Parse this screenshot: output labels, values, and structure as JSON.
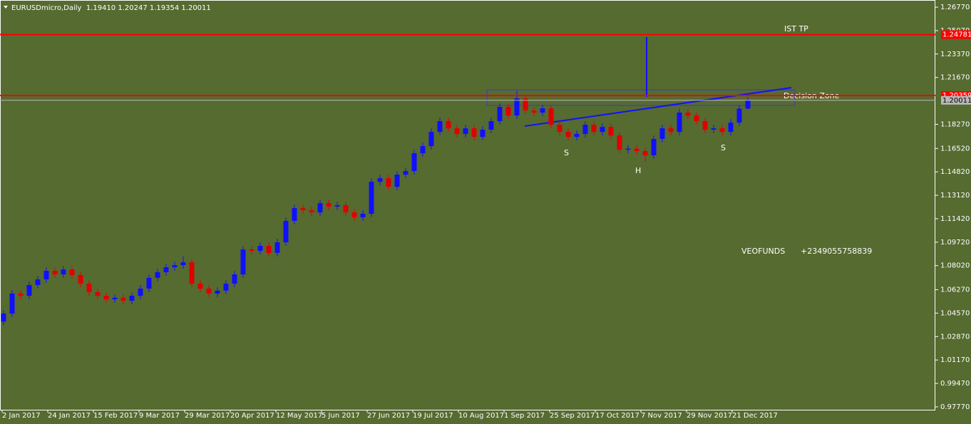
{
  "chart_data": {
    "type": "candlestick",
    "title": "EURUSDmicro,Daily  1.19410 1.20247 1.19354 1.20011",
    "up_color": "#1010ff",
    "down_color": "#e00000",
    "open": [
      1.0395,
      1.0454,
      1.0599,
      1.0583,
      1.0661,
      1.0702,
      1.0764,
      1.0738,
      1.0774,
      1.0733,
      1.0671,
      1.0609,
      1.0583,
      1.0557,
      1.0568,
      1.0547,
      1.0583,
      1.0635,
      1.0713,
      1.0754,
      1.079,
      1.0805,
      1.0826,
      1.0671,
      1.0635,
      1.0599,
      1.062,
      1.0671,
      1.0738,
      1.0919,
      1.0909,
      1.0945,
      1.0894,
      1.0971,
      1.1126,
      1.1219,
      1.1204,
      1.1188,
      1.1255,
      1.123,
      1.124,
      1.1188,
      1.1152,
      1.1178,
      1.141,
      1.1436,
      1.1374,
      1.1462,
      1.1488,
      1.1617,
      1.1669,
      1.1772,
      1.185,
      1.1798,
      1.1757,
      1.1798,
      1.1736,
      1.1788,
      1.185,
      1.1953,
      1.1891,
      1.2015,
      1.1927,
      1.1912,
      1.1943,
      1.1824,
      1.1772,
      1.1736,
      1.1757,
      1.1824,
      1.1772,
      1.1808,
      1.1746,
      1.1643,
      1.165,
      1.1633,
      1.1602,
      1.1721,
      1.1798,
      1.1772,
      1.1912,
      1.1891,
      1.185,
      1.1788,
      1.1798,
      1.1772,
      1.1839,
      1.1941
    ],
    "high": [
      1.0479,
      1.0624,
      1.0624,
      1.0686,
      1.0727,
      1.0789,
      1.0789,
      1.0799,
      1.0799,
      1.0758,
      1.0696,
      1.0634,
      1.0608,
      1.0593,
      1.0593,
      1.0608,
      1.066,
      1.0738,
      1.0779,
      1.0815,
      1.083,
      1.087,
      1.0851,
      1.0696,
      1.066,
      1.0645,
      1.0696,
      1.0763,
      1.0944,
      1.0944,
      1.097,
      1.097,
      1.0996,
      1.1151,
      1.1244,
      1.1244,
      1.1229,
      1.128,
      1.128,
      1.1265,
      1.1265,
      1.1213,
      1.1203,
      1.1435,
      1.1461,
      1.1461,
      1.1487,
      1.1513,
      1.1642,
      1.1694,
      1.1797,
      1.1875,
      1.1875,
      1.1823,
      1.1823,
      1.1823,
      1.1813,
      1.1875,
      1.1978,
      1.1978,
      1.207,
      1.204,
      1.1952,
      1.1968,
      1.1968,
      1.1849,
      1.1797,
      1.1782,
      1.1849,
      1.1849,
      1.1833,
      1.1833,
      1.1771,
      1.1675,
      1.1675,
      1.1658,
      1.1746,
      1.1823,
      1.1823,
      1.1937,
      1.1937,
      1.1916,
      1.1875,
      1.1823,
      1.1823,
      1.1864,
      1.1966,
      1.20247
    ],
    "low": [
      1.037,
      1.0429,
      1.0558,
      1.0558,
      1.0636,
      1.0677,
      1.0713,
      1.0713,
      1.0708,
      1.0646,
      1.0584,
      1.0558,
      1.0532,
      1.0532,
      1.0522,
      1.0522,
      1.0558,
      1.061,
      1.0688,
      1.0729,
      1.0765,
      1.078,
      1.0646,
      1.061,
      1.0574,
      1.0574,
      1.0595,
      1.0646,
      1.0713,
      1.0884,
      1.0884,
      1.0869,
      1.0869,
      1.0946,
      1.1101,
      1.1179,
      1.1163,
      1.1163,
      1.1205,
      1.1205,
      1.1163,
      1.1127,
      1.1127,
      1.1153,
      1.1385,
      1.1349,
      1.1349,
      1.1437,
      1.1463,
      1.1592,
      1.1644,
      1.1747,
      1.1773,
      1.1732,
      1.1732,
      1.1711,
      1.1711,
      1.1763,
      1.1825,
      1.1866,
      1.1866,
      1.1902,
      1.1887,
      1.1887,
      1.1799,
      1.1747,
      1.1711,
      1.1711,
      1.1732,
      1.1747,
      1.1747,
      1.1721,
      1.1618,
      1.1618,
      1.1608,
      1.1555,
      1.1577,
      1.1696,
      1.1747,
      1.1747,
      1.1866,
      1.1825,
      1.1763,
      1.1763,
      1.1747,
      1.1747,
      1.1814,
      1.19354
    ],
    "close": [
      1.0454,
      1.0599,
      1.0583,
      1.0661,
      1.0702,
      1.0764,
      1.0738,
      1.0774,
      1.0733,
      1.0671,
      1.0609,
      1.0583,
      1.0557,
      1.0568,
      1.0547,
      1.0583,
      1.0635,
      1.0713,
      1.0754,
      1.079,
      1.0805,
      1.0826,
      1.0671,
      1.0635,
      1.0599,
      1.062,
      1.0671,
      1.0738,
      1.0919,
      1.0909,
      1.0945,
      1.0894,
      1.0971,
      1.1126,
      1.1219,
      1.1204,
      1.1188,
      1.1255,
      1.123,
      1.124,
      1.1188,
      1.1152,
      1.1178,
      1.141,
      1.1436,
      1.1374,
      1.1462,
      1.1488,
      1.1617,
      1.1669,
      1.1772,
      1.185,
      1.1798,
      1.1757,
      1.1798,
      1.1736,
      1.1788,
      1.185,
      1.1953,
      1.1891,
      1.2015,
      1.1927,
      1.1912,
      1.1943,
      1.1824,
      1.1772,
      1.1736,
      1.1757,
      1.1824,
      1.1772,
      1.1808,
      1.1746,
      1.1643,
      1.165,
      1.1633,
      1.1602,
      1.1721,
      1.1798,
      1.1772,
      1.1912,
      1.1891,
      1.185,
      1.1788,
      1.1798,
      1.1772,
      1.1839,
      1.1941,
      1.20011
    ],
    "ylim": [
      0.9756,
      1.2729
    ],
    "yticks": [
      {
        "value": 1.2677,
        "label": "1.26770"
      },
      {
        "value": 1.2507,
        "label": "1.25070"
      },
      {
        "value": 1.2337,
        "label": "1.23370"
      },
      {
        "value": 1.2167,
        "label": "1.21670"
      },
      {
        "value": 1.1827,
        "label": "1.18270"
      },
      {
        "value": 1.1652,
        "label": "1.16520"
      },
      {
        "value": 1.1482,
        "label": "1.14820"
      },
      {
        "value": 1.1312,
        "label": "1.13120"
      },
      {
        "value": 1.1142,
        "label": "1.11420"
      },
      {
        "value": 1.0972,
        "label": "1.09720"
      },
      {
        "value": 1.0802,
        "label": "1.08020"
      },
      {
        "value": 1.0627,
        "label": "1.06270"
      },
      {
        "value": 1.0457,
        "label": "1.04570"
      },
      {
        "value": 1.0287,
        "label": "1.02870"
      },
      {
        "value": 1.0117,
        "label": "1.01170"
      },
      {
        "value": 0.9947,
        "label": "0.99470"
      },
      {
        "value": 0.9777,
        "label": "0.97770"
      }
    ],
    "xtick_labels": [
      "2 Jan 2017",
      "24 Jan 2017",
      "15 Feb 2017",
      "9 Mar 2017",
      "29 Mar 2017",
      "20 Apr 2017",
      "12 May 2017",
      "5 Jun 2017",
      "27 Jun 2017",
      "19 Jul 2017",
      "10 Aug 2017",
      "1 Sep 2017",
      "25 Sep 2017",
      "17 Oct 2017",
      "7 Nov 2017",
      "29 Nov 2017",
      "21 Dec 2017"
    ],
    "levels": [
      {
        "value": 1.24781,
        "label": "1.24781",
        "color": "#ff0000"
      },
      {
        "value": 1.20359,
        "label": "1.20359",
        "color": "#ff0000"
      },
      {
        "value": 1.20011,
        "label": "1.20011",
        "color": "#b8b8b8"
      }
    ],
    "annotations": [
      "IST TP",
      "Decision Zone",
      "S",
      "H",
      "S",
      "VEOFUNDS",
      "+2349055758839"
    ]
  }
}
